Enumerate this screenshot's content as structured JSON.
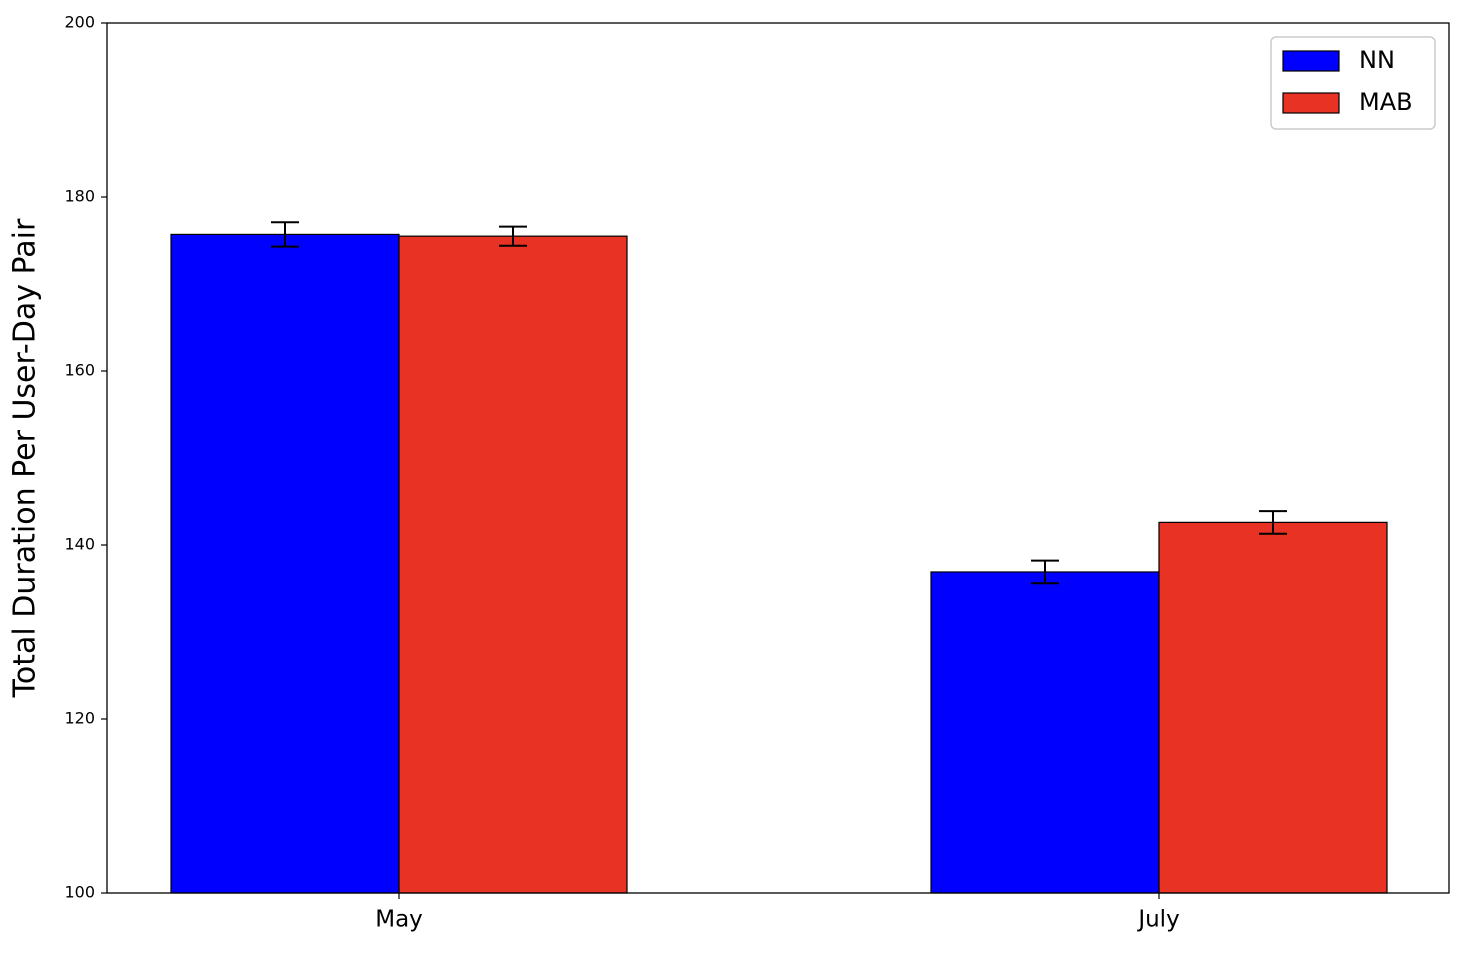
{
  "chart_data": {
    "type": "bar",
    "y_label": "Total Duration Per User-Day Pair",
    "categories": [
      "May",
      "July"
    ],
    "series": [
      {
        "name": "NN",
        "color": "#0000ff",
        "values": [
          175.7,
          136.9
        ],
        "errors": [
          1.4,
          1.3
        ]
      },
      {
        "name": "MAB",
        "color": "#e83223",
        "values": [
          175.5,
          142.6
        ],
        "errors": [
          1.1,
          1.3
        ]
      }
    ],
    "ylim": [
      100,
      200
    ],
    "yticks": [
      100,
      120,
      140,
      160,
      180,
      200
    ],
    "legend": "upper right"
  }
}
